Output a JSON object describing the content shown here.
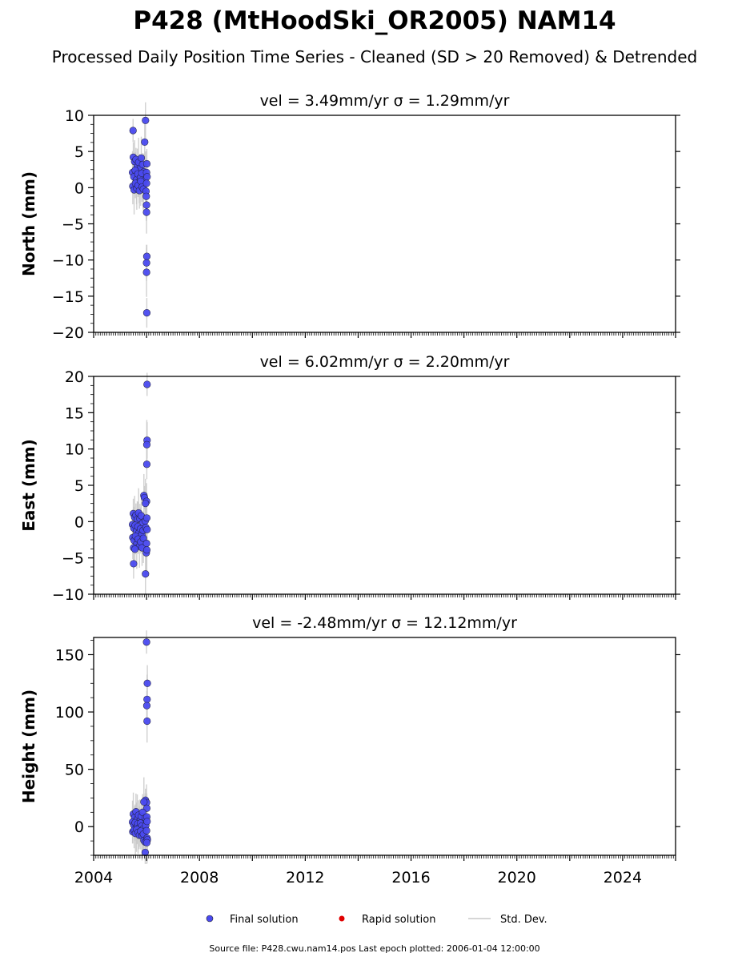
{
  "figure": {
    "title": "P428 (MtHoodSki_OR2005) NAM14",
    "subtitle": "Processed Daily Position Time Series - Cleaned (SD > 20 Removed) & Detrended",
    "source_note": "Source file: P428.cwu.nam14.pos  Last epoch plotted: 2006-01-04 12:00:00"
  },
  "legend": {
    "final": "Final solution",
    "rapid": "Rapid solution",
    "std": "Std. Dev."
  },
  "colors": {
    "final": "#4a4af0",
    "rapid": "#e00000",
    "std": "#c8c8c8"
  },
  "chart_data": [
    {
      "type": "scatter",
      "title": "vel = 3.49mm/yr   σ = 1.29mm/yr",
      "ylabel": "North (mm)",
      "xlim": [
        2004,
        2026
      ],
      "ylim": [
        -20,
        10
      ],
      "yticks": [
        -20,
        -15,
        -10,
        -5,
        0,
        5,
        10
      ],
      "ytick_labels": [
        "−20",
        "−15",
        "−10",
        "−5",
        "0",
        "5",
        "10"
      ],
      "series": [
        {
          "points": [
            [
              2005.49,
              7.9
            ],
            [
              2005.96,
              9.3
            ],
            [
              2005.93,
              6.3
            ],
            [
              2005.5,
              4.2
            ],
            [
              2005.55,
              3.6
            ],
            [
              2005.6,
              3.9
            ],
            [
              2005.65,
              2.9
            ],
            [
              2005.7,
              3.5
            ],
            [
              2005.75,
              2.6
            ],
            [
              2005.8,
              4.1
            ],
            [
              2005.85,
              3.2
            ],
            [
              2005.9,
              2.2
            ],
            [
              2005.95,
              1.6
            ],
            [
              2006.01,
              3.3
            ],
            [
              2005.47,
              2.1
            ],
            [
              2005.52,
              1.5
            ],
            [
              2005.57,
              2.4
            ],
            [
              2005.62,
              1.1
            ],
            [
              2005.67,
              1.9
            ],
            [
              2005.72,
              0.8
            ],
            [
              2005.77,
              1.4
            ],
            [
              2005.82,
              2.0
            ],
            [
              2005.87,
              0.5
            ],
            [
              2005.92,
              1.0
            ],
            [
              2006.0,
              2.1
            ],
            [
              2006.02,
              1.5
            ],
            [
              2005.48,
              0.2
            ],
            [
              2005.53,
              -0.3
            ],
            [
              2005.58,
              0.6
            ],
            [
              2005.63,
              -0.1
            ],
            [
              2005.68,
              0.3
            ],
            [
              2005.73,
              -0.4
            ],
            [
              2005.78,
              0.9
            ],
            [
              2005.83,
              0.1
            ],
            [
              2005.88,
              -0.2
            ],
            [
              2005.98,
              -0.5
            ],
            [
              2006.0,
              0.6
            ],
            [
              2005.99,
              -1.2
            ],
            [
              2006.0,
              -2.4
            ],
            [
              2006.0,
              -3.4
            ],
            [
              2006.01,
              -9.5
            ],
            [
              2006.0,
              -10.4
            ],
            [
              2006.0,
              -11.7
            ],
            [
              2006.01,
              -17.3
            ]
          ]
        }
      ]
    },
    {
      "type": "scatter",
      "title": "vel = 6.02mm/yr   σ = 2.20mm/yr",
      "ylabel": "East (mm)",
      "xlim": [
        2004,
        2026
      ],
      "ylim": [
        -10,
        20
      ],
      "yticks": [
        -10,
        -5,
        0,
        5,
        10,
        15,
        20
      ],
      "ytick_labels": [
        "−10",
        "−5",
        "0",
        "5",
        "10",
        "15",
        "20"
      ],
      "series": [
        {
          "points": [
            [
              2006.02,
              18.9
            ],
            [
              2006.02,
              11.2
            ],
            [
              2006.01,
              10.6
            ],
            [
              2006.01,
              7.9
            ],
            [
              2005.9,
              3.6
            ],
            [
              2005.92,
              3.3
            ],
            [
              2006.0,
              2.8
            ],
            [
              2005.96,
              2.5
            ],
            [
              2005.5,
              1.1
            ],
            [
              2005.55,
              0.6
            ],
            [
              2005.6,
              0.9
            ],
            [
              2005.65,
              0.3
            ],
            [
              2005.7,
              1.2
            ],
            [
              2005.75,
              0.4
            ],
            [
              2005.8,
              0.8
            ],
            [
              2005.85,
              -0.2
            ],
            [
              2005.95,
              0.1
            ],
            [
              2006.01,
              0.5
            ],
            [
              2005.47,
              -0.4
            ],
            [
              2005.52,
              -0.9
            ],
            [
              2005.57,
              -0.5
            ],
            [
              2005.62,
              -1.3
            ],
            [
              2005.67,
              -0.7
            ],
            [
              2005.72,
              -1.5
            ],
            [
              2005.77,
              -1.0
            ],
            [
              2005.82,
              -1.8
            ],
            [
              2005.87,
              -1.2
            ],
            [
              2005.97,
              -0.8
            ],
            [
              2006.02,
              -1.1
            ],
            [
              2005.48,
              -2.2
            ],
            [
              2005.53,
              -2.6
            ],
            [
              2005.58,
              -2.0
            ],
            [
              2005.63,
              -3.1
            ],
            [
              2005.68,
              -2.4
            ],
            [
              2005.73,
              -3.4
            ],
            [
              2005.78,
              -2.8
            ],
            [
              2005.83,
              -3.6
            ],
            [
              2005.88,
              -2.3
            ],
            [
              2006.0,
              -3.0
            ],
            [
              2005.51,
              -3.6
            ],
            [
              2005.56,
              -3.8
            ],
            [
              2005.99,
              -4.3
            ],
            [
              2006.01,
              -3.9
            ],
            [
              2005.51,
              -5.8
            ],
            [
              2005.96,
              -7.2
            ]
          ]
        }
      ]
    },
    {
      "type": "scatter",
      "title": "vel = -2.48mm/yr   σ = 12.12mm/yr",
      "ylabel": "Height (mm)",
      "xlabel": "",
      "xlim": [
        2004,
        2026
      ],
      "ylim": [
        -25,
        165
      ],
      "yticks": [
        0,
        50,
        100,
        150
      ],
      "ytick_labels": [
        "0",
        "50",
        "100",
        "150"
      ],
      "xticks": [
        2004,
        2008,
        2012,
        2016,
        2020,
        2024
      ],
      "xtick_labels": [
        "2004",
        "2008",
        "2012",
        "2016",
        "2020",
        "2024"
      ],
      "series": [
        {
          "points": [
            [
              2006.0,
              161.0
            ],
            [
              2006.03,
              125.0
            ],
            [
              2006.02,
              111.0
            ],
            [
              2006.01,
              105.5
            ],
            [
              2006.02,
              92.0
            ],
            [
              2005.96,
              23.0
            ],
            [
              2006.0,
              21.0
            ],
            [
              2005.9,
              21.5
            ],
            [
              2006.01,
              16.0
            ],
            [
              2005.5,
              11.0
            ],
            [
              2005.55,
              8.0
            ],
            [
              2005.6,
              13.0
            ],
            [
              2005.65,
              6.5
            ],
            [
              2005.7,
              10.0
            ],
            [
              2005.75,
              5.0
            ],
            [
              2005.8,
              9.0
            ],
            [
              2005.85,
              12.5
            ],
            [
              2005.95,
              7.5
            ],
            [
              2006.01,
              8.5
            ],
            [
              2005.47,
              4.0
            ],
            [
              2005.52,
              1.5
            ],
            [
              2005.57,
              3.5
            ],
            [
              2005.62,
              -0.5
            ],
            [
              2005.67,
              2.5
            ],
            [
              2005.72,
              -1.0
            ],
            [
              2005.77,
              3.0
            ],
            [
              2005.82,
              0.5
            ],
            [
              2005.87,
              -2.0
            ],
            [
              2005.97,
              1.0
            ],
            [
              2006.02,
              4.5
            ],
            [
              2005.48,
              -4.5
            ],
            [
              2005.53,
              -3.0
            ],
            [
              2005.58,
              -6.0
            ],
            [
              2005.63,
              -2.5
            ],
            [
              2005.68,
              -5.0
            ],
            [
              2005.73,
              -7.5
            ],
            [
              2005.78,
              -4.0
            ],
            [
              2005.83,
              -8.0
            ],
            [
              2005.88,
              -6.5
            ],
            [
              2006.0,
              -3.5
            ],
            [
              2005.9,
              -12.0
            ],
            [
              2005.95,
              -13.5
            ],
            [
              2006.02,
              -10.0
            ],
            [
              2006.03,
              -11.5
            ],
            [
              2006.01,
              -14.0
            ],
            [
              2005.95,
              -22.5
            ]
          ]
        }
      ]
    }
  ]
}
